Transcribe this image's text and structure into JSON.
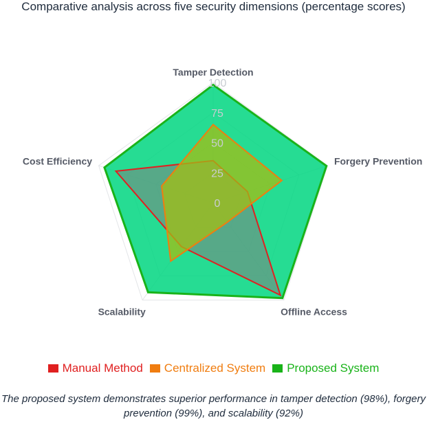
{
  "chart_data": {
    "type": "radar",
    "title": "Comparative analysis across five security dimensions (percentage scores)",
    "axes": [
      "Tamper Detection",
      "Forgery Prevention",
      "Offline Access",
      "Scalability",
      "Cost Efficiency"
    ],
    "ticks": [
      "0",
      "25",
      "50",
      "75",
      "100"
    ],
    "range": [
      0,
      100
    ],
    "series": [
      {
        "name": "Manual Method",
        "values": [
          35,
          30,
          95,
          45,
          85
        ],
        "color": "#e02020",
        "fill": "rgba(128,128,128,0.55)"
      },
      {
        "name": "Centralized System",
        "values": [
          65,
          60,
          20,
          60,
          45
        ],
        "color": "#f07d10",
        "fill": "rgba(163,190,20,0.75)"
      },
      {
        "name": "Proposed System",
        "values": [
          98,
          99,
          98,
          92,
          95
        ],
        "color": "#19b319",
        "fill": "rgba(0,214,128,0.85)"
      }
    ],
    "legend_position": "bottom",
    "caption": "The proposed system demonstrates superior performance in tamper detection (98%), forgery prevention (99%), and scalability (92%)"
  }
}
